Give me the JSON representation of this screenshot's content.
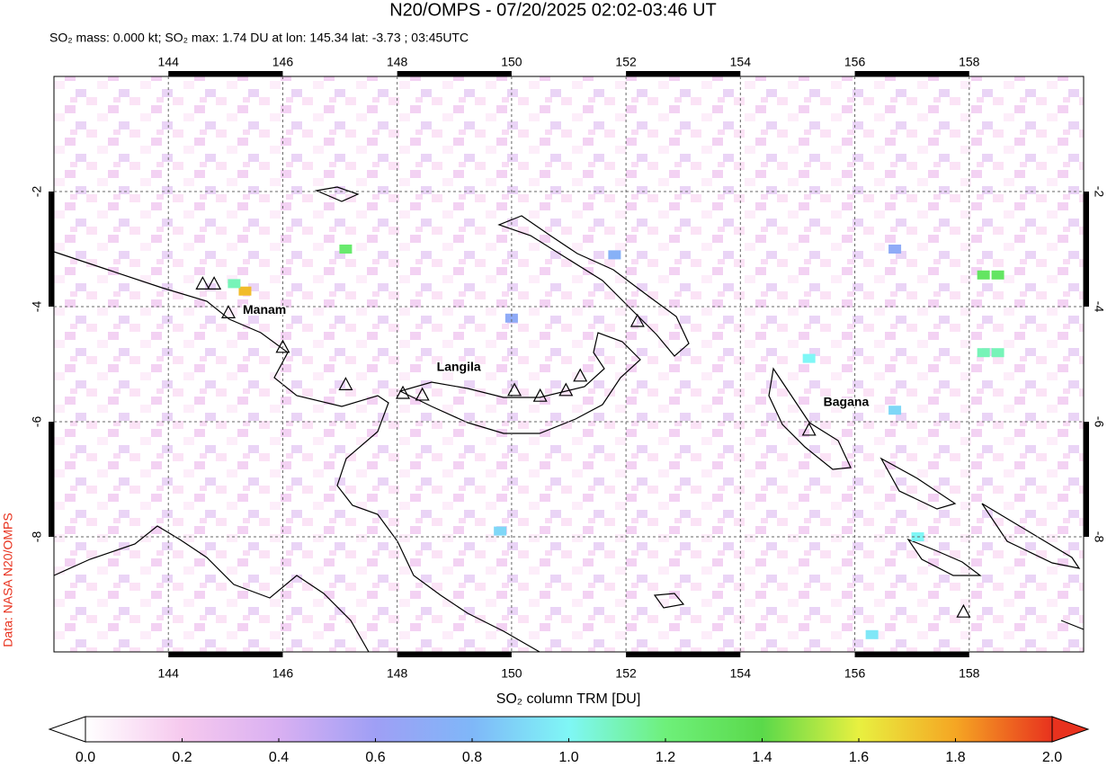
{
  "chart_data": {
    "type": "map",
    "title": "N20/OMPS - 07/20/2025 02:02-03:46 UT",
    "subtitle": "SO₂ mass: 0.000 kt; SO₂ max: 1.74 DU at lon: 145.34 lat: -3.73 ; 03:45UTC",
    "source": "Data: NASA N20/OMPS",
    "xlim": [
      142,
      160
    ],
    "ylim": [
      -10,
      0
    ],
    "xticks": [
      144,
      146,
      148,
      150,
      152,
      154,
      156,
      158
    ],
    "yticks": [
      -2,
      -4,
      -6,
      -8
    ],
    "grid": true,
    "volcanoes": [
      {
        "name": "Manam",
        "lon": 145.05,
        "lat": -4.1
      },
      {
        "name": null,
        "lon": 144.6,
        "lat": -3.6
      },
      {
        "name": null,
        "lon": 144.8,
        "lat": -3.6
      },
      {
        "name": null,
        "lon": 146.0,
        "lat": -4.7
      },
      {
        "name": null,
        "lon": 147.1,
        "lat": -5.35
      },
      {
        "name": "Langila",
        "lon": 148.44,
        "lat": -5.53
      },
      {
        "name": null,
        "lon": 148.1,
        "lat": -5.5
      },
      {
        "name": null,
        "lon": 150.05,
        "lat": -5.45
      },
      {
        "name": null,
        "lon": 150.5,
        "lat": -5.55
      },
      {
        "name": null,
        "lon": 150.95,
        "lat": -5.45
      },
      {
        "name": null,
        "lon": 151.2,
        "lat": -5.2
      },
      {
        "name": null,
        "lon": 152.2,
        "lat": -4.25
      },
      {
        "name": "Bagana",
        "lon": 155.2,
        "lat": -6.14
      },
      {
        "name": null,
        "lon": 157.9,
        "lat": -9.3
      }
    ],
    "pixels": [
      {
        "lon": 145.34,
        "lat": -3.73,
        "value": 1.74
      },
      {
        "lon": 145.15,
        "lat": -3.6,
        "value": 1.1
      },
      {
        "lon": 147.1,
        "lat": -3.0,
        "value": 1.25
      },
      {
        "lon": 158.25,
        "lat": -3.45,
        "value": 1.3
      },
      {
        "lon": 158.5,
        "lat": -3.45,
        "value": 1.3
      },
      {
        "lon": 158.25,
        "lat": -4.8,
        "value": 1.1
      },
      {
        "lon": 158.5,
        "lat": -4.8,
        "value": 1.1
      },
      {
        "lon": 155.2,
        "lat": -4.9,
        "value": 1.0
      },
      {
        "lon": 157.1,
        "lat": -8.0,
        "value": 1.0
      },
      {
        "lon": 156.3,
        "lat": -9.7,
        "value": 0.95
      },
      {
        "lon": 156.7,
        "lat": -5.8,
        "value": 0.9
      },
      {
        "lon": 149.8,
        "lat": -7.9,
        "value": 0.9
      },
      {
        "lon": 150.0,
        "lat": -4.2,
        "value": 0.7
      },
      {
        "lon": 151.8,
        "lat": -3.1,
        "value": 0.75
      },
      {
        "lon": 156.7,
        "lat": -3.0,
        "value": 0.7
      }
    ],
    "colorbar": {
      "label": "SO₂ column TRM [DU]",
      "lim": [
        0,
        2
      ],
      "ticks": [
        {
          "value": 0,
          "label": "0.0"
        },
        0.2,
        0.4,
        0.6,
        0.8,
        {
          "value": 1,
          "label": "1.0"
        },
        1.2,
        1.4,
        1.6,
        1.8,
        {
          "value": 2,
          "label": "2.0"
        }
      ],
      "colors": [
        "#ffffff",
        "#f6c9ee",
        "#d9b0f2",
        "#9f9ff5",
        "#7fb7f8",
        "#7ff7f6",
        "#6ef07a",
        "#5ad94a",
        "#e8f040",
        "#f5a623",
        "#e8321e"
      ]
    }
  }
}
